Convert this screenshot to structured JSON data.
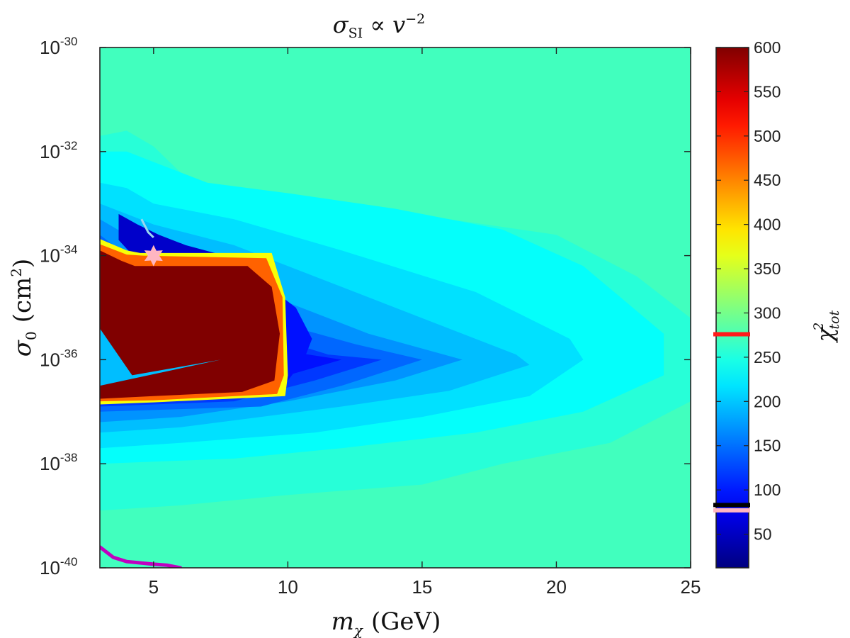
{
  "chart_data": {
    "type": "heatmap",
    "title": {
      "base": "σ",
      "sub": "SI",
      "mid": " ∝ ",
      "var": "v",
      "sup": "−2"
    },
    "xlabel": {
      "base": "m",
      "sub": "χ",
      "rest": "(GeV)"
    },
    "ylabel": {
      "base": "σ",
      "sub": "0",
      "rest": "(cm",
      "sup": "2",
      "close": ")"
    },
    "colorbar_label": {
      "base": "χ",
      "sup": "2",
      "sub": "tot"
    },
    "x_range": [
      3,
      25
    ],
    "x_ticks": [
      5,
      10,
      15,
      20,
      25
    ],
    "x_tick_labels": [
      "5",
      "10",
      "15",
      "20",
      "25"
    ],
    "y_scale": "log",
    "y_range_log10": [
      -40,
      -30
    ],
    "y_ticks": [
      {
        "exp": -30,
        "base": "10",
        "sup": "-30"
      },
      {
        "exp": -32,
        "base": "10",
        "sup": "-32"
      },
      {
        "exp": -34,
        "base": "10",
        "sup": "-34"
      },
      {
        "exp": -36,
        "base": "10",
        "sup": "-36"
      },
      {
        "exp": -38,
        "base": "10",
        "sup": "-38"
      },
      {
        "exp": -40,
        "base": "10",
        "sup": "-40"
      }
    ],
    "colorbar_range": [
      12,
      600
    ],
    "colorbar_ticks": [
      50,
      100,
      150,
      200,
      250,
      300,
      350,
      400,
      450,
      500,
      550,
      600
    ],
    "colormap": "jet",
    "background_value": 270,
    "regions": [
      {
        "value": 255,
        "points": [
          [
            3,
            -31.7
          ],
          [
            4,
            -31.6
          ],
          [
            5,
            -31.9
          ],
          [
            6,
            -32.4
          ],
          [
            8,
            -32.8
          ],
          [
            12,
            -33.0
          ],
          [
            16,
            -33.3
          ],
          [
            20,
            -33.6
          ],
          [
            23,
            -34.4
          ],
          [
            25,
            -35.2
          ],
          [
            25,
            -36.8
          ],
          [
            22,
            -37.6
          ],
          [
            18,
            -38.0
          ],
          [
            15,
            -38.4
          ],
          [
            10,
            -38.6
          ],
          [
            6,
            -38.8
          ],
          [
            3,
            -38.9
          ]
        ]
      },
      {
        "value": 235,
        "points": [
          [
            3,
            -32.0
          ],
          [
            4,
            -32.0
          ],
          [
            5,
            -32.2
          ],
          [
            7,
            -32.6
          ],
          [
            10,
            -32.8
          ],
          [
            14,
            -33.1
          ],
          [
            18,
            -33.5
          ],
          [
            21,
            -34.2
          ],
          [
            24,
            -35.5
          ],
          [
            24,
            -36.3
          ],
          [
            21,
            -37.0
          ],
          [
            17,
            -37.4
          ],
          [
            12,
            -37.7
          ],
          [
            8,
            -37.9
          ],
          [
            3,
            -38.0
          ]
        ]
      },
      {
        "value": 215,
        "points": [
          [
            3,
            -32.6
          ],
          [
            4,
            -32.7
          ],
          [
            5,
            -33.0
          ],
          [
            8,
            -33.3
          ],
          [
            12,
            -33.9
          ],
          [
            17,
            -34.7
          ],
          [
            20.5,
            -35.6
          ],
          [
            21,
            -36.0
          ],
          [
            19,
            -36.7
          ],
          [
            15,
            -37.1
          ],
          [
            11,
            -37.4
          ],
          [
            6,
            -37.6
          ],
          [
            3,
            -37.7
          ]
        ]
      },
      {
        "value": 195,
        "points": [
          [
            3,
            -33.0
          ],
          [
            4,
            -33.2
          ],
          [
            5,
            -33.4
          ],
          [
            8,
            -33.8
          ],
          [
            11,
            -34.4
          ],
          [
            15,
            -35.2
          ],
          [
            18.5,
            -35.9
          ],
          [
            19,
            -36.1
          ],
          [
            16,
            -36.6
          ],
          [
            12,
            -36.9
          ],
          [
            6,
            -37.3
          ],
          [
            3,
            -37.4
          ]
        ]
      },
      {
        "value": 170,
        "points": [
          [
            3,
            -33.3
          ],
          [
            4,
            -33.6
          ],
          [
            5,
            -34.0
          ],
          [
            9,
            -34.7
          ],
          [
            13,
            -35.5
          ],
          [
            16.5,
            -36.0
          ],
          [
            14,
            -36.4
          ],
          [
            10,
            -36.8
          ],
          [
            6,
            -37.1
          ],
          [
            3,
            -37.2
          ]
        ]
      },
      {
        "value": 145,
        "points": [
          [
            3,
            -33.6
          ],
          [
            4,
            -34.0
          ],
          [
            5,
            -34.4
          ],
          [
            9,
            -35.2
          ],
          [
            12.5,
            -35.7
          ],
          [
            15,
            -36.0
          ],
          [
            12,
            -36.5
          ],
          [
            9,
            -36.9
          ],
          [
            3,
            -37.0
          ]
        ]
      },
      {
        "value": 118,
        "points": [
          [
            3,
            -33.9
          ],
          [
            4.5,
            -34.3
          ],
          [
            9,
            -35.5
          ],
          [
            11.5,
            -35.9
          ],
          [
            13.5,
            -36.0
          ],
          [
            11,
            -36.4
          ],
          [
            8,
            -36.8
          ],
          [
            3,
            -36.9
          ]
        ]
      },
      {
        "value": 95,
        "points": [
          [
            3,
            -34.0
          ],
          [
            5,
            -34.6
          ],
          [
            9.5,
            -35.8
          ],
          [
            12,
            -36.0
          ],
          [
            10,
            -36.3
          ],
          [
            7,
            -36.6
          ],
          [
            3,
            -36.7
          ]
        ]
      },
      {
        "value": 55,
        "points": [
          [
            3.7,
            -33.2
          ],
          [
            4.4,
            -33.4
          ],
          [
            5.2,
            -33.6
          ],
          [
            6.2,
            -33.8
          ],
          [
            7.5,
            -33.98
          ],
          [
            4.2,
            -33.98
          ],
          [
            3.7,
            -33.7
          ]
        ]
      },
      {
        "value": 95,
        "points": [
          [
            8.8,
            -34.4
          ],
          [
            10.3,
            -35.0
          ],
          [
            10.9,
            -35.6
          ],
          [
            10.6,
            -36.0
          ],
          [
            10.0,
            -36.4
          ],
          [
            8.6,
            -36.7
          ],
          [
            8.2,
            -35.5
          ]
        ]
      },
      {
        "value": 375,
        "points": [
          [
            3,
            -33.68
          ],
          [
            4.0,
            -33.9
          ],
          [
            4.5,
            -33.95
          ],
          [
            9.4,
            -33.95
          ],
          [
            9.9,
            -34.8
          ],
          [
            10.0,
            -36.3
          ],
          [
            9.9,
            -36.7
          ],
          [
            5.0,
            -36.82
          ],
          [
            3,
            -36.86
          ]
        ]
      },
      {
        "value": 470,
        "points": [
          [
            3,
            -33.78
          ],
          [
            4.0,
            -33.98
          ],
          [
            4.6,
            -34.0
          ],
          [
            9.2,
            -34.05
          ],
          [
            9.8,
            -34.8
          ],
          [
            9.85,
            -36.3
          ],
          [
            9.6,
            -36.66
          ],
          [
            5.0,
            -36.78
          ],
          [
            3,
            -36.8
          ]
        ]
      },
      {
        "value": 600,
        "points": [
          [
            3,
            -33.9
          ],
          [
            3.8,
            -34.1
          ],
          [
            4.3,
            -34.2
          ],
          [
            8.5,
            -34.2
          ],
          [
            9.4,
            -34.6
          ],
          [
            9.7,
            -35.5
          ],
          [
            9.5,
            -36.4
          ],
          [
            8.3,
            -36.62
          ],
          [
            5.0,
            -36.7
          ],
          [
            3,
            -36.75
          ]
        ]
      },
      {
        "value": 195,
        "points": [
          [
            3,
            -35.4
          ],
          [
            4.2,
            -36.3
          ],
          [
            7.5,
            -36.0
          ],
          [
            3,
            -36.5
          ]
        ]
      }
    ],
    "ridge_line": [
      [
        4.55,
        -33.3
      ],
      [
        4.8,
        -33.55
      ],
      [
        5.0,
        -33.65
      ]
    ],
    "curve": {
      "name": "",
      "color": "#c000c0",
      "points": [
        [
          3,
          -39.6
        ],
        [
          3.5,
          -39.8
        ],
        [
          4,
          -39.88
        ],
        [
          5,
          -39.93
        ],
        [
          5.5,
          -39.95
        ],
        [
          6,
          -40.0
        ]
      ]
    },
    "best_fit_point": {
      "x": 5.0,
      "y_log10": -34.0,
      "color": "#ffb6c1",
      "marker": "star"
    },
    "colorbar_markers": [
      {
        "value": 276,
        "color": "#ff1a1a"
      },
      {
        "value": 83,
        "color": "#000000"
      },
      {
        "value": 77,
        "color": "#ffb6c1"
      }
    ],
    "grid": false,
    "legend": "none"
  }
}
